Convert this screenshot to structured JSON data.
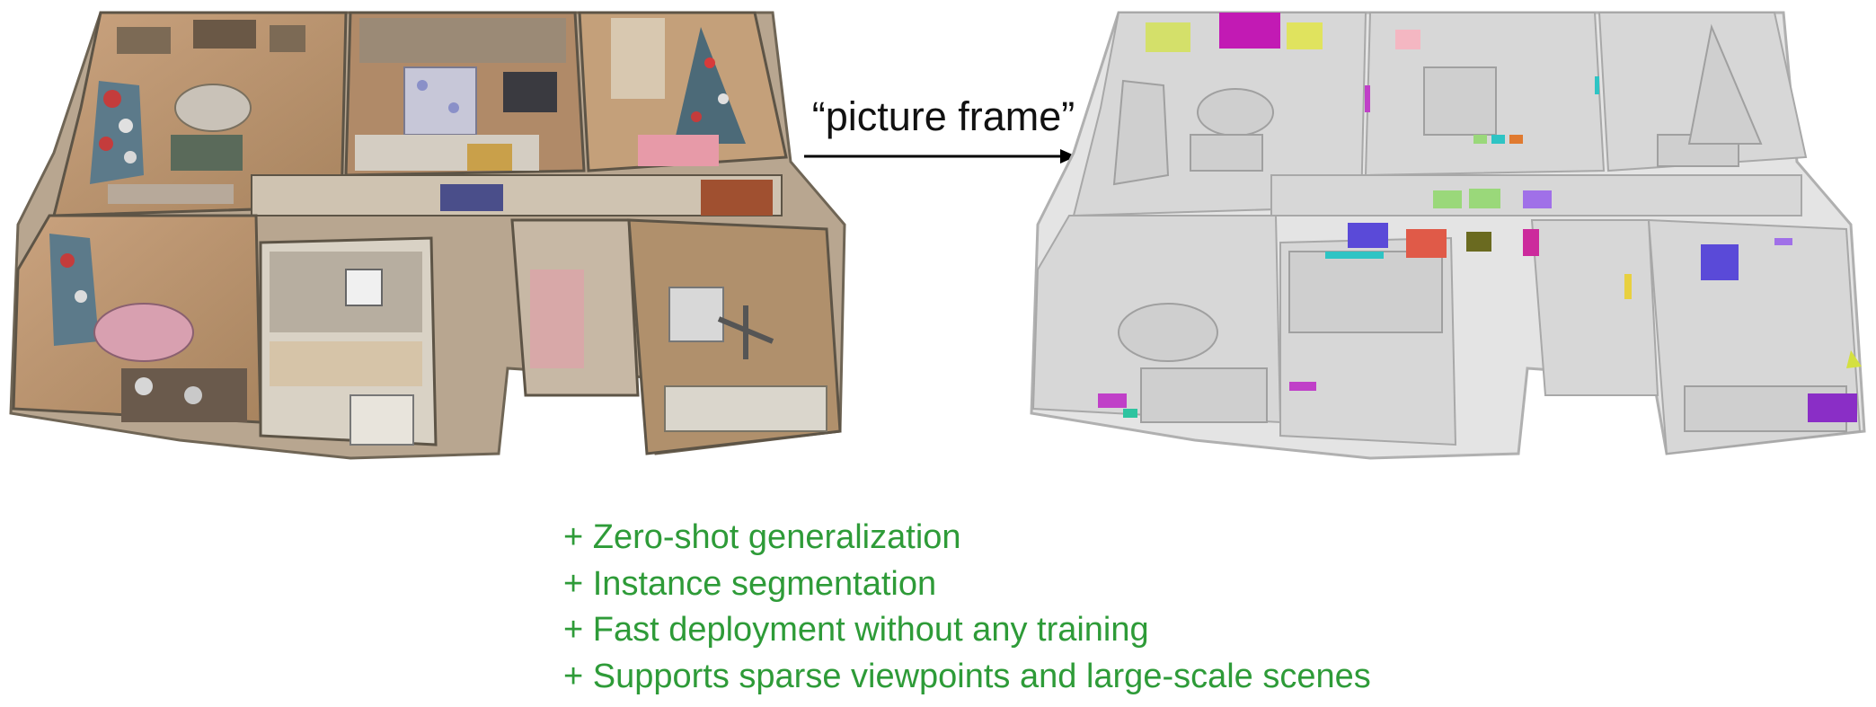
{
  "query": {
    "text": "“picture frame”"
  },
  "features": [
    "+ Zero-shot generalization",
    "+ Instance segmentation",
    "+ Fast deployment without any training",
    "+ Supports sparse viewpoints and large-scale scenes"
  ],
  "colors": {
    "feature_text": "#2e9b38",
    "label_text": "#111111",
    "mesh_gray": "#e4e4e4",
    "highlights": [
      "#d4e06a",
      "#c21ab4",
      "#e0e35e",
      "#f4b7c2",
      "#9ad87a",
      "#8a5cf0",
      "#5a4ad8",
      "#2ec4c4",
      "#e05a48",
      "#6a6a20",
      "#cc2a9c",
      "#c040c8",
      "#8a2ec6"
    ]
  }
}
